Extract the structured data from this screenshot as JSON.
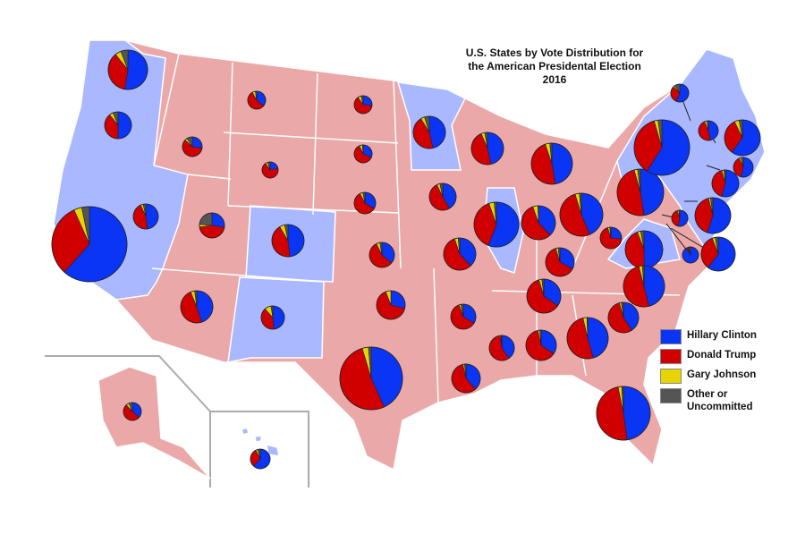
{
  "title": [
    "U.S. States by Vote Distribution for",
    "the American Presidental Election",
    "2016"
  ],
  "colors": {
    "land_trump": "#eba8a8",
    "land_clinton": "#a9b8ff",
    "border": "#ffffff",
    "clinton": "#0a35f5",
    "trump": "#d10000",
    "johnson": "#e8d400",
    "other": "#555555"
  },
  "legend": [
    {
      "label": "Hillary Clinton",
      "color": "#0a35f5"
    },
    {
      "label": "Donald Trump",
      "color": "#d10000"
    },
    {
      "label": "Gary Johnson",
      "color": "#e8d400"
    },
    {
      "label": "Other or Uncommitted",
      "color": "#555555"
    }
  ],
  "states": [
    {
      "state": "WA",
      "shares": [
        52.5,
        36.8,
        4.9,
        5.8
      ]
    },
    {
      "state": "OR",
      "shares": [
        50.1,
        39.1,
        4.7,
        6.1
      ]
    },
    {
      "state": "CA",
      "shares": [
        61.7,
        31.6,
        3.4,
        3.3
      ]
    },
    {
      "state": "NV",
      "shares": [
        47.9,
        45.5,
        3.3,
        3.3
      ]
    },
    {
      "state": "ID",
      "shares": [
        27.5,
        59.3,
        4.1,
        9.1
      ]
    },
    {
      "state": "MT",
      "shares": [
        35.8,
        56.2,
        5.6,
        2.4
      ]
    },
    {
      "state": "WY",
      "shares": [
        21.9,
        68.2,
        5.2,
        4.7
      ]
    },
    {
      "state": "UT",
      "shares": [
        27.5,
        45.5,
        3.5,
        23.5
      ]
    },
    {
      "state": "CO",
      "shares": [
        48.2,
        43.3,
        5.2,
        3.3
      ]
    },
    {
      "state": "AZ",
      "shares": [
        45.1,
        48.7,
        4.1,
        2.1
      ]
    },
    {
      "state": "NM",
      "shares": [
        48.3,
        40.0,
        9.3,
        2.4
      ]
    },
    {
      "state": "ND",
      "shares": [
        27.2,
        63.0,
        6.2,
        3.6
      ]
    },
    {
      "state": "SD",
      "shares": [
        31.7,
        61.5,
        5.6,
        1.2
      ]
    },
    {
      "state": "NE",
      "shares": [
        33.7,
        58.7,
        4.6,
        3.0
      ]
    },
    {
      "state": "KS",
      "shares": [
        36.1,
        56.7,
        4.7,
        2.5
      ]
    },
    {
      "state": "OK",
      "shares": [
        28.9,
        65.3,
        5.8,
        0
      ]
    },
    {
      "state": "TX",
      "shares": [
        43.2,
        52.2,
        3.2,
        1.4
      ]
    },
    {
      "state": "MN",
      "shares": [
        46.4,
        44.9,
        3.8,
        4.9
      ]
    },
    {
      "state": "IA",
      "shares": [
        41.7,
        51.1,
        3.8,
        3.4
      ]
    },
    {
      "state": "MO",
      "shares": [
        38.1,
        56.8,
        3.5,
        1.6
      ]
    },
    {
      "state": "AR",
      "shares": [
        33.7,
        60.6,
        2.6,
        3.1
      ]
    },
    {
      "state": "LA",
      "shares": [
        38.4,
        58.1,
        1.9,
        1.6
      ]
    },
    {
      "state": "WI",
      "shares": [
        46.5,
        47.2,
        3.6,
        2.7
      ]
    },
    {
      "state": "IL",
      "shares": [
        55.8,
        38.8,
        3.8,
        1.6
      ]
    },
    {
      "state": "MS",
      "shares": [
        40.1,
        57.9,
        1.2,
        0.8
      ]
    },
    {
      "state": "MI",
      "shares": [
        47.3,
        47.5,
        3.6,
        1.6
      ]
    },
    {
      "state": "IN",
      "shares": [
        37.9,
        56.8,
        4.9,
        0.4
      ]
    },
    {
      "state": "KY",
      "shares": [
        32.7,
        62.5,
        2.8,
        2.0
      ]
    },
    {
      "state": "TN",
      "shares": [
        34.7,
        60.7,
        2.8,
        1.8
      ]
    },
    {
      "state": "AL",
      "shares": [
        34.4,
        62.1,
        2.1,
        1.4
      ]
    },
    {
      "state": "GA",
      "shares": [
        45.6,
        50.8,
        3.1,
        0.5
      ]
    },
    {
      "state": "FL",
      "shares": [
        47.8,
        49.0,
        2.2,
        1.0
      ]
    },
    {
      "state": "OH",
      "shares": [
        43.6,
        51.7,
        3.2,
        1.5
      ]
    },
    {
      "state": "WV",
      "shares": [
        26.5,
        68.6,
        3.2,
        1.7
      ]
    },
    {
      "state": "VA",
      "shares": [
        49.8,
        44.4,
        3.0,
        2.8
      ]
    },
    {
      "state": "NC",
      "shares": [
        46.2,
        49.8,
        2.7,
        1.3
      ]
    },
    {
      "state": "SC",
      "shares": [
        40.7,
        54.9,
        2.3,
        2.1
      ]
    },
    {
      "state": "PA",
      "shares": [
        47.5,
        48.2,
        2.4,
        1.9
      ]
    },
    {
      "state": "NY",
      "shares": [
        59.0,
        36.5,
        2.3,
        2.2
      ]
    },
    {
      "state": "VT",
      "shares": [
        56.7,
        30.3,
        3.2,
        9.8
      ]
    },
    {
      "state": "NH",
      "shares": [
        47.0,
        46.6,
        4.1,
        2.3
      ]
    },
    {
      "state": "ME",
      "shares": [
        47.8,
        44.9,
        5.1,
        2.2
      ]
    },
    {
      "state": "MA",
      "shares": [
        60.0,
        32.8,
        4.2,
        3.0
      ]
    },
    {
      "state": "RI",
      "shares": [
        54.4,
        38.9,
        3.2,
        3.5
      ]
    },
    {
      "state": "CT",
      "shares": [
        54.6,
        40.9,
        2.9,
        1.6
      ]
    },
    {
      "state": "NJ",
      "shares": [
        55.0,
        41.0,
        1.9,
        2.1
      ]
    },
    {
      "state": "DE",
      "shares": [
        53.1,
        41.7,
        3.3,
        1.9
      ]
    },
    {
      "state": "MD",
      "shares": [
        60.3,
        33.9,
        2.9,
        2.9
      ]
    },
    {
      "state": "DC",
      "shares": [
        90.9,
        4.1,
        1.6,
        3.4
      ]
    },
    {
      "state": "AK",
      "shares": [
        36.6,
        51.3,
        5.9,
        6.2
      ]
    },
    {
      "state": "HI",
      "shares": [
        62.2,
        30.0,
        3.7,
        4.1
      ]
    }
  ]
}
